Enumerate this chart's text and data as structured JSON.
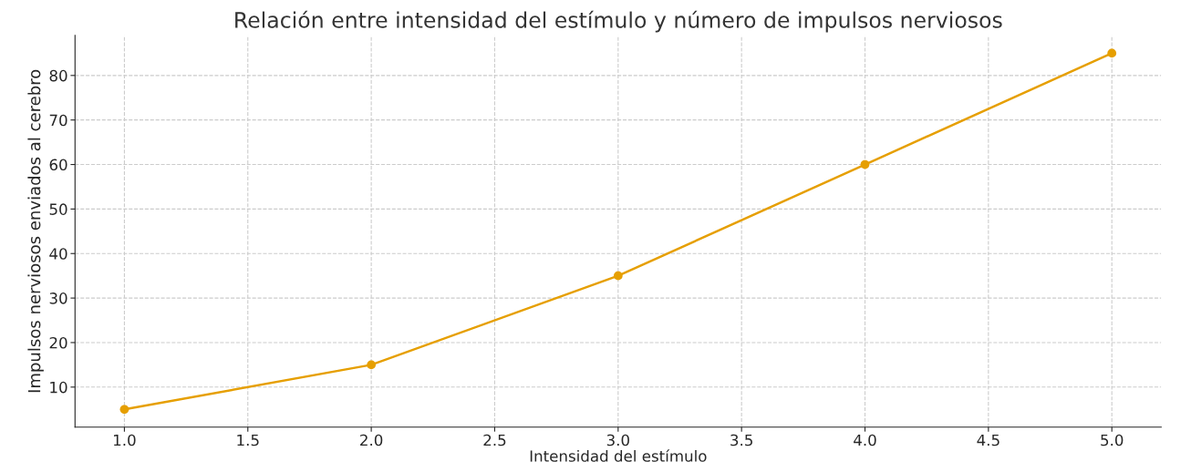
{
  "chart_data": {
    "type": "line",
    "title": "Relación entre intensidad del estímulo y número de impulsos nerviosos",
    "xlabel": "Intensidad del estímulo",
    "ylabel": "Impulsos nerviosos enviados al cerebro",
    "x": [
      1.0,
      2.0,
      3.0,
      4.0,
      5.0
    ],
    "series": [
      {
        "color": "#e69f00",
        "values": [
          5,
          15,
          35,
          60,
          85
        ]
      }
    ],
    "xlim": [
      0.8,
      5.2
    ],
    "xticks": [
      {
        "value": 1.0,
        "label": "1.0"
      },
      {
        "value": 1.5,
        "label": "1.5"
      },
      {
        "value": 2.0,
        "label": "2.0"
      },
      {
        "value": 2.5,
        "label": "2.5"
      },
      {
        "value": 3.0,
        "label": "3.0"
      },
      {
        "value": 3.5,
        "label": "3.5"
      },
      {
        "value": 4.0,
        "label": "4.0"
      },
      {
        "value": 4.5,
        "label": "4.5"
      },
      {
        "value": 5.0,
        "label": "5.0"
      }
    ],
    "ylim": [
      1,
      89
    ],
    "yticks": [
      10,
      20,
      30,
      40,
      50,
      60,
      70,
      80
    ],
    "grid": true,
    "marker": "circle",
    "line_style": "solid"
  }
}
